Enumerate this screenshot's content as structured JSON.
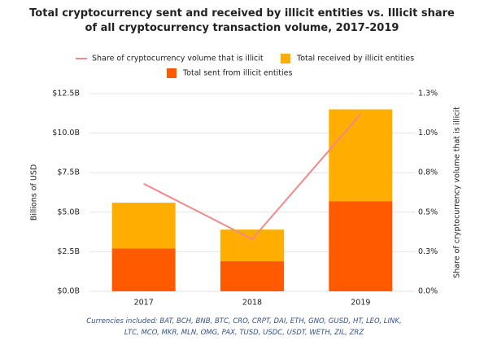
{
  "chart_data": {
    "type": "bar",
    "title": "Total cryptocurrency sent and received by illicit entities vs. Illicit share of all cryptocurrency transaction volume, 2017-2019",
    "note": "Currencies included: BAT, BCH, BNB, BTC, CRO, CRPT, DAI, ETH, GNO, GUSD, HT, LEO, LINK, LTC, MCO, MKR, MLN, OMG, PAX, TUSD, USDC, USDT, WETH, ZIL, ZRZ",
    "categories": [
      "2017",
      "2018",
      "2019"
    ],
    "y_label": "Billions of USD",
    "y2_label": "Share of cryptocurrency volume that is illicit",
    "ylim": [
      0,
      12.5
    ],
    "yticks": [
      {
        "value": 0,
        "label": "$0.0B"
      },
      {
        "value": 2.5,
        "label": "$2.5B"
      },
      {
        "value": 5,
        "label": "$5.0B"
      },
      {
        "value": 7.5,
        "label": "$7.5B"
      },
      {
        "value": 10,
        "label": "$10.0B"
      },
      {
        "value": 12.5,
        "label": "$12.5B"
      }
    ],
    "y2lim": [
      0,
      1.25
    ],
    "y2ticks": [
      {
        "value": 0,
        "label": "0.0%"
      },
      {
        "value": 0.25,
        "label": "0.3%"
      },
      {
        "value": 0.5,
        "label": "0.5%"
      },
      {
        "value": 0.75,
        "label": "0.8%"
      },
      {
        "value": 1,
        "label": "1.0%"
      },
      {
        "value": 1.25,
        "label": "1.3%"
      }
    ],
    "series": [
      {
        "name": "Total sent from illicit entities",
        "type": "bar",
        "color": "#ff5a00",
        "values": [
          2.7,
          1.9,
          5.7
        ]
      },
      {
        "name": "Total received by illicit entities",
        "type": "bar",
        "color": "#ffae00",
        "values": [
          2.9,
          2.0,
          5.8
        ]
      },
      {
        "name": "Share of cryptocurrency volume that is illicit",
        "type": "line",
        "axis": "y2",
        "color": "#ef8a8a",
        "values": [
          0.68,
          0.33,
          1.12
        ]
      }
    ]
  }
}
